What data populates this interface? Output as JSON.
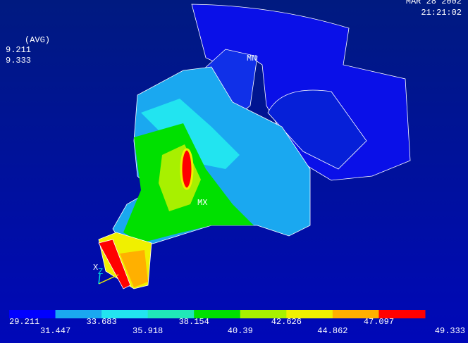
{
  "header": {
    "date": "MAR 28 2002",
    "time": "21:21:02"
  },
  "info": [
    "(AVG)",
    "9.211",
    "9.333"
  ],
  "markers": {
    "min": "MN",
    "max": "MX"
  },
  "triad": {
    "x": "X",
    "z": "Z"
  },
  "legend": {
    "colors": [
      "#0000ff",
      "#1aa8f0",
      "#22e4f0",
      "#20e8b8",
      "#00e000",
      "#a8f000",
      "#f0f000",
      "#ffb000",
      "#ff0000"
    ],
    "labels": [
      "29.211",
      "31.447",
      "33.683",
      "35.918",
      "38.154",
      "40.39",
      "42.626",
      "44.862",
      "47.097",
      "49.333"
    ]
  }
}
